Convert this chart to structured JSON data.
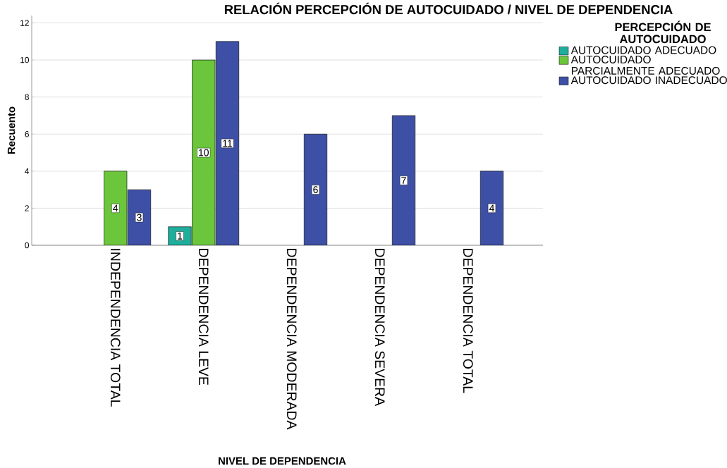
{
  "chart_data": {
    "type": "bar",
    "title": "RELACIÓN PERCEPCIÓN DE AUTOCUIDADO / NIVEL DE DEPENDENCIA",
    "xlabel": "NIVEL DE DEPENDENCIA",
    "ylabel": "Recuento",
    "legend_title": "PERCEPCIÓN DE AUTOCUIDADO",
    "categories": [
      "INDEPENDENCIA TOTAL",
      "DEPENDENCIA LEVE",
      "DEPENDENCIA MODERADA",
      "DEPENDENCIA SEVERA",
      "DEPENDENCIA TOTAL"
    ],
    "series": [
      {
        "name": "AUTOCUIDADO ADECUADO",
        "color": "#1fae9b",
        "values": [
          null,
          1,
          null,
          null,
          null
        ]
      },
      {
        "name": "AUTOCUIDADO PARCIALMENTE ADECUADO",
        "color": "#6cc63c",
        "values": [
          4,
          10,
          null,
          null,
          null
        ]
      },
      {
        "name": "AUTOCUIDADO INADECUADO",
        "color": "#3e50a6",
        "values": [
          3,
          11,
          6,
          7,
          4
        ]
      }
    ],
    "ylim": [
      0,
      12.4
    ],
    "yticks": [
      0,
      2,
      4,
      6,
      8,
      10,
      12
    ],
    "grid": "y",
    "legend": "right",
    "data_labels": true
  }
}
